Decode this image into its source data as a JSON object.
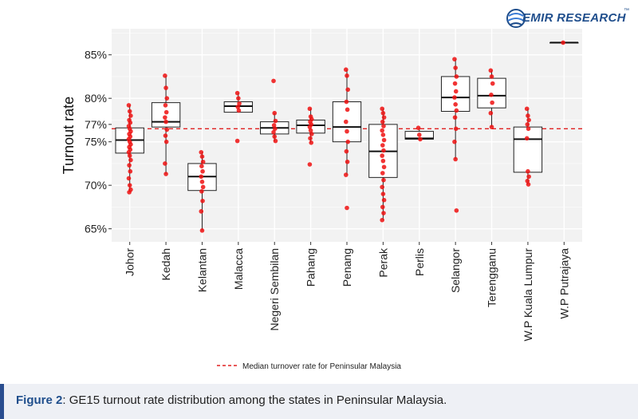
{
  "brand": {
    "name": "EMIR RESEARCH",
    "tm": "™"
  },
  "caption": {
    "label": "Figure 2",
    "text": ": GE15 turnout rate distribution among the states in Peninsular Malaysia."
  },
  "chart_data": {
    "type": "box",
    "ylabel": "Turnout rate",
    "xlabel": "",
    "ylim": [
      63.5,
      88
    ],
    "yticks": [
      {
        "value": 65,
        "label": "65%"
      },
      {
        "value": 70,
        "label": "70%"
      },
      {
        "value": 75,
        "label": "75%"
      },
      {
        "value": 77,
        "label": "77%"
      },
      {
        "value": 80,
        "label": "80%"
      },
      {
        "value": 85,
        "label": "85%"
      }
    ],
    "median_line": {
      "value": 76.5,
      "label": "Median turnover rate for Peninsular Malaysia",
      "color": "#e02020"
    },
    "point_color": "#ee1111",
    "boxes": [
      {
        "state": "Johor",
        "q1": 73.7,
        "median": 75.2,
        "q3": 76.6,
        "whisker_low": 69.2,
        "whisker_high": 79.2,
        "points": [
          79.2,
          78.5,
          78.0,
          77.5,
          77.2,
          76.8,
          76.5,
          76.2,
          75.9,
          75.6,
          75.3,
          75.0,
          74.7,
          74.4,
          74.1,
          73.8,
          73.4,
          72.9,
          72.3,
          71.6,
          70.8,
          70.0,
          69.5,
          69.2
        ]
      },
      {
        "state": "Kedah",
        "q1": 76.7,
        "median": 77.3,
        "q3": 79.5,
        "whisker_low": 71.3,
        "whisker_high": 82.6,
        "points": [
          82.6,
          81.2,
          80.0,
          79.2,
          78.4,
          77.8,
          77.3,
          76.4,
          75.7,
          75.0,
          72.5,
          71.3
        ]
      },
      {
        "state": "Kelantan",
        "q1": 69.4,
        "median": 71.0,
        "q3": 72.5,
        "whisker_low": 64.8,
        "whisker_high": 73.8,
        "points": [
          73.8,
          73.3,
          72.7,
          72.2,
          71.6,
          71.0,
          70.4,
          69.8,
          69.3,
          68.2,
          67.0,
          64.8
        ]
      },
      {
        "state": "Malacca",
        "q1": 78.4,
        "median": 79.1,
        "q3": 79.6,
        "whisker_low": 78.4,
        "whisker_high": 80.6,
        "points": [
          80.6,
          80.0,
          79.4,
          79.0,
          78.6,
          75.1
        ]
      },
      {
        "state": "Negeri Sembilan",
        "q1": 75.9,
        "median": 76.6,
        "q3": 77.3,
        "whisker_low": 75.1,
        "whisker_high": 78.3,
        "points": [
          82.0,
          78.3,
          77.4,
          76.9,
          76.5,
          76.1,
          75.6,
          75.1
        ]
      },
      {
        "state": "Pahang",
        "q1": 76.0,
        "median": 76.9,
        "q3": 77.5,
        "whisker_low": 74.9,
        "whisker_high": 78.8,
        "points": [
          78.8,
          77.9,
          77.6,
          77.3,
          77.0,
          76.7,
          76.3,
          75.9,
          75.4,
          74.9,
          72.4
        ]
      },
      {
        "state": "Penang",
        "q1": 75.0,
        "median": 76.7,
        "q3": 79.6,
        "whisker_low": 71.2,
        "whisker_high": 83.3,
        "points": [
          83.3,
          82.6,
          81.0,
          79.6,
          78.7,
          77.3,
          76.2,
          75.0,
          73.9,
          72.7,
          71.2,
          67.4
        ]
      },
      {
        "state": "Perak",
        "q1": 70.9,
        "median": 73.9,
        "q3": 77.0,
        "whisker_low": 66.0,
        "whisker_high": 78.8,
        "points": [
          78.8,
          78.3,
          77.8,
          77.3,
          76.8,
          76.3,
          75.8,
          75.2,
          74.6,
          74.0,
          73.4,
          72.8,
          72.1,
          71.4,
          70.6,
          69.8,
          69.0,
          68.3,
          67.5,
          66.8,
          66.0
        ]
      },
      {
        "state": "Perlis",
        "q1": 75.3,
        "median": 75.4,
        "q3": 76.2,
        "whisker_low": 75.3,
        "whisker_high": 76.6,
        "points": [
          76.6,
          75.8,
          75.3
        ]
      },
      {
        "state": "Selangor",
        "q1": 78.5,
        "median": 80.1,
        "q3": 82.5,
        "whisker_low": 73.0,
        "whisker_high": 84.5,
        "points": [
          84.5,
          83.5,
          82.5,
          81.7,
          80.8,
          80.1,
          79.3,
          78.6,
          77.8,
          76.5,
          75.0,
          73.0,
          67.1
        ]
      },
      {
        "state": "Terengganu",
        "q1": 78.9,
        "median": 80.3,
        "q3": 82.3,
        "whisker_low": 76.7,
        "whisker_high": 83.2,
        "points": [
          83.2,
          82.5,
          81.7,
          80.4,
          79.5,
          78.3,
          76.7
        ]
      },
      {
        "state": "W.P Kuala Lumpur",
        "q1": 71.5,
        "median": 75.3,
        "q3": 76.7,
        "whisker_low": 70.1,
        "whisker_high": 78.8,
        "points": [
          78.8,
          78.0,
          77.5,
          77.0,
          76.5,
          75.4,
          71.6,
          71.0,
          70.5,
          70.1
        ]
      },
      {
        "state": "W.P Putrajaya",
        "q1": 86.4,
        "median": 86.4,
        "q3": 86.4,
        "whisker_low": 86.4,
        "whisker_high": 86.4,
        "points": [
          86.4
        ]
      }
    ]
  }
}
